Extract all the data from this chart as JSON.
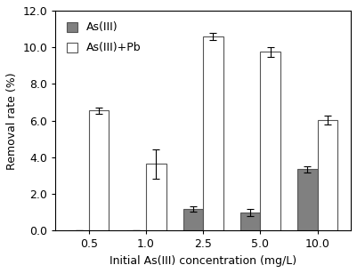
{
  "categories": [
    "0.5",
    "1.0",
    "2.5",
    "5.0",
    "10.0"
  ],
  "as3_values": [
    0.0,
    0.0,
    1.2,
    1.0,
    3.35
  ],
  "as3_errors": [
    0.0,
    0.0,
    0.15,
    0.18,
    0.18
  ],
  "as3pb_values": [
    6.55,
    3.65,
    10.6,
    9.75,
    6.05
  ],
  "as3pb_errors": [
    0.18,
    0.8,
    0.2,
    0.25,
    0.25
  ],
  "as3_color": "#808080",
  "as3pb_color": "#ffffff",
  "as3_edgecolor": "#555555",
  "as3pb_edgecolor": "#555555",
  "ylabel": "Removal rate (%)",
  "xlabel": "Initial As(III) concentration (mg/L)",
  "ylim": [
    0,
    12.0
  ],
  "yticks": [
    0.0,
    2.0,
    4.0,
    6.0,
    8.0,
    10.0,
    12.0
  ],
  "legend_labels": [
    "As(III)",
    "As(III)+Pb"
  ],
  "bar_width": 0.35,
  "title_fontsize": 9,
  "axis_fontsize": 9,
  "tick_fontsize": 9,
  "legend_fontsize": 9
}
